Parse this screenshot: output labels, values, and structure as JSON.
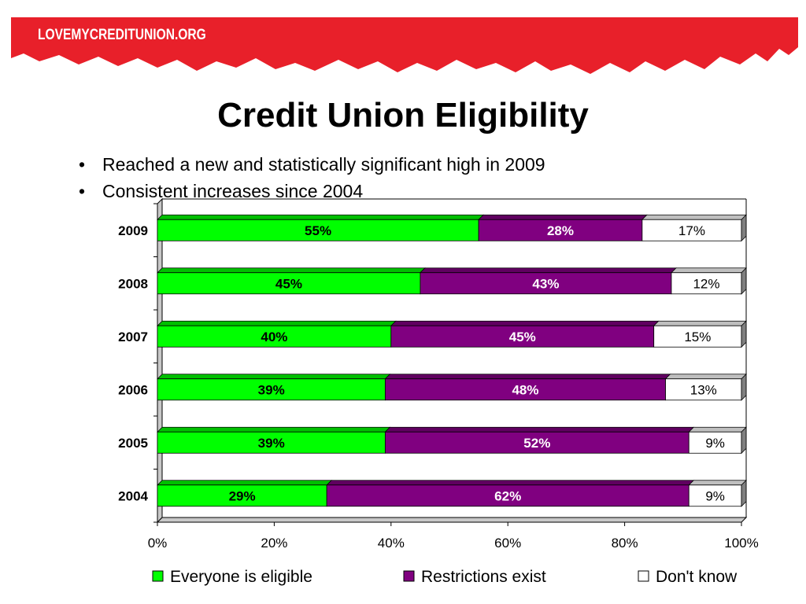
{
  "brand": "LOVEMYCREDITUNION.ORG",
  "colors": {
    "banner_red": "#e8202a",
    "series_green": "#00ff00",
    "series_purple": "#800080",
    "series_white": "#ffffff"
  },
  "title": "Credit Union Eligibility",
  "bullets": [
    "Reached a new and statistically significant high in 2009",
    "Consistent increases since 2004"
  ],
  "chart_data": {
    "type": "bar",
    "orientation": "horizontal",
    "stacked": true,
    "percent": true,
    "categories": [
      "2009",
      "2008",
      "2007",
      "2006",
      "2005",
      "2004"
    ],
    "series": [
      {
        "name": "Everyone is eligible",
        "color": "#00ff00",
        "values": [
          55,
          45,
          40,
          39,
          39,
          29
        ],
        "labels": [
          "55%",
          "45%",
          "40%",
          "39%",
          "39%",
          "29%"
        ]
      },
      {
        "name": "Restrictions exist",
        "color": "#800080",
        "values": [
          28,
          43,
          45,
          48,
          52,
          62
        ],
        "labels": [
          "28%",
          "43%",
          "45%",
          "48%",
          "52%",
          "62%"
        ]
      },
      {
        "name": "Don't know",
        "color": "#ffffff",
        "values": [
          17,
          12,
          15,
          13,
          9,
          9
        ],
        "labels": [
          "17%",
          "12%",
          "15%",
          "13%",
          "9%",
          "9%"
        ]
      }
    ],
    "xlim": [
      0,
      100
    ],
    "xticks": [
      0,
      20,
      40,
      60,
      80,
      100
    ],
    "xtick_labels": [
      "0%",
      "20%",
      "40%",
      "60%",
      "80%",
      "100%"
    ],
    "legend": "bottom",
    "grid": false
  }
}
